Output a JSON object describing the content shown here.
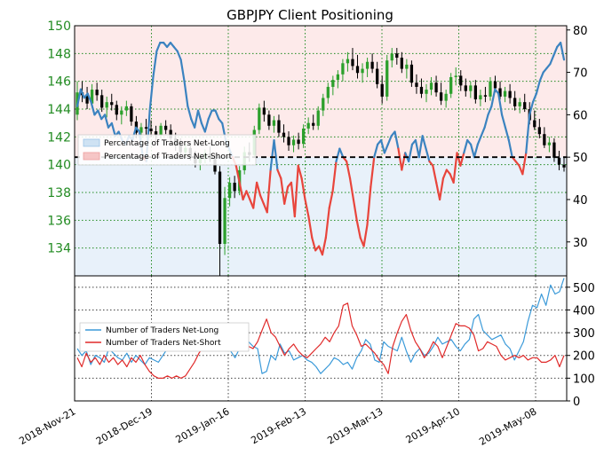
{
  "chart_data": [
    {
      "type": "line",
      "title": "GBPJPY Client Positioning",
      "x_labels": [
        "2018-Nov-21",
        "2018-Dec-19",
        "2019-Jan-16",
        "2019-Feb-13",
        "2019-Mar-13",
        "2019-Apr-10",
        "2019-May-08"
      ],
      "y_left_ticks": [
        134,
        136,
        138,
        140,
        142,
        144,
        146,
        148,
        150
      ],
      "y_left_range": [
        132,
        150
      ],
      "y_right_ticks": [
        30,
        40,
        50,
        60,
        70,
        80
      ],
      "y_right_range": [
        22,
        81
      ],
      "reference_line": 50,
      "grid": true,
      "legend_position": "middle-left",
      "legend": [
        "Percentage of Traders Net-Long",
        "Percentage of Traders Net-Short"
      ],
      "colors": {
        "long": "#3b83c0",
        "short": "#e8453c",
        "price_up": "#2ca02c",
        "price_down": "#000000",
        "left_axis": "#228b22",
        "grid": "#228b22"
      },
      "price_ohlc": [
        [
          143.6,
          146.0,
          143.2,
          145.2
        ],
        [
          145.2,
          146.0,
          144.5,
          145.0
        ],
        [
          145.0,
          145.6,
          144.0,
          144.4
        ],
        [
          144.4,
          145.8,
          144.1,
          145.4
        ],
        [
          145.4,
          145.9,
          144.6,
          145.0
        ],
        [
          145.0,
          145.4,
          143.8,
          144.1
        ],
        [
          144.1,
          144.9,
          143.4,
          144.5
        ],
        [
          144.5,
          145.1,
          143.9,
          144.3
        ],
        [
          144.3,
          144.6,
          143.2,
          143.6
        ],
        [
          143.6,
          144.2,
          142.9,
          143.9
        ],
        [
          143.9,
          144.6,
          143.5,
          144.2
        ],
        [
          144.2,
          144.4,
          142.8,
          143.1
        ],
        [
          143.1,
          143.5,
          141.9,
          142.3
        ],
        [
          142.3,
          143.0,
          141.8,
          142.7
        ],
        [
          142.7,
          143.3,
          142.1,
          142.6
        ],
        [
          142.6,
          143.2,
          142.0,
          142.4
        ],
        [
          142.4,
          142.8,
          141.7,
          142.1
        ],
        [
          142.1,
          143.0,
          141.9,
          142.8
        ],
        [
          142.8,
          143.2,
          142.2,
          142.5
        ],
        [
          142.5,
          142.9,
          141.6,
          141.9
        ],
        [
          141.9,
          142.3,
          141.0,
          141.4
        ],
        [
          141.4,
          141.9,
          140.6,
          140.9
        ],
        [
          140.9,
          141.5,
          140.5,
          141.2
        ],
        [
          141.2,
          141.6,
          140.3,
          140.6
        ],
        [
          140.6,
          141.0,
          139.8,
          140.1
        ],
        [
          140.1,
          140.8,
          139.6,
          140.5
        ],
        [
          140.5,
          141.1,
          140.1,
          140.8
        ],
        [
          140.8,
          141.3,
          140.2,
          140.4
        ],
        [
          140.4,
          140.8,
          139.3,
          139.5
        ],
        [
          139.5,
          139.9,
          132.0,
          134.3
        ],
        [
          134.3,
          138.4,
          133.5,
          137.6
        ],
        [
          137.6,
          139.1,
          137.0,
          138.7
        ],
        [
          138.7,
          139.2,
          137.6,
          138.1
        ],
        [
          138.1,
          139.9,
          137.8,
          139.6
        ],
        [
          139.6,
          141.3,
          139.3,
          140.9
        ],
        [
          140.9,
          141.6,
          140.2,
          140.7
        ],
        [
          140.7,
          142.8,
          140.5,
          142.5
        ],
        [
          142.5,
          144.4,
          142.2,
          144.1
        ],
        [
          144.1,
          144.6,
          143.1,
          143.6
        ],
        [
          143.6,
          143.9,
          142.5,
          142.8
        ],
        [
          142.8,
          143.5,
          142.3,
          143.2
        ],
        [
          143.2,
          143.6,
          142.0,
          142.3
        ],
        [
          142.3,
          142.9,
          141.6,
          142.0
        ],
        [
          142.0,
          142.4,
          141.0,
          141.4
        ],
        [
          141.4,
          142.1,
          140.9,
          141.8
        ],
        [
          141.8,
          142.3,
          141.1,
          141.5
        ],
        [
          141.5,
          142.9,
          141.2,
          142.6
        ],
        [
          142.6,
          143.4,
          142.2,
          143.0
        ],
        [
          143.0,
          143.6,
          142.5,
          142.8
        ],
        [
          142.8,
          144.2,
          142.5,
          143.9
        ],
        [
          143.9,
          145.1,
          143.5,
          144.8
        ],
        [
          144.8,
          145.9,
          144.4,
          145.6
        ],
        [
          145.6,
          146.4,
          145.0,
          146.1
        ],
        [
          146.1,
          146.8,
          145.5,
          146.5
        ],
        [
          146.5,
          147.6,
          146.0,
          147.3
        ],
        [
          147.3,
          148.1,
          146.7,
          147.6
        ],
        [
          147.6,
          148.4,
          146.8,
          147.1
        ],
        [
          147.1,
          147.9,
          146.2,
          146.6
        ],
        [
          146.6,
          147.3,
          145.9,
          146.9
        ],
        [
          146.9,
          147.7,
          146.3,
          147.4
        ],
        [
          147.4,
          148.0,
          146.6,
          146.9
        ],
        [
          146.9,
          147.4,
          145.5,
          145.8
        ],
        [
          145.8,
          146.4,
          144.4,
          144.9
        ],
        [
          144.9,
          147.9,
          144.6,
          147.5
        ],
        [
          147.5,
          148.4,
          147.0,
          148.0
        ],
        [
          148.0,
          148.4,
          147.2,
          147.7
        ],
        [
          147.7,
          148.1,
          146.6,
          146.9
        ],
        [
          146.9,
          147.6,
          146.2,
          147.2
        ],
        [
          147.2,
          147.5,
          145.6,
          145.9
        ],
        [
          145.9,
          146.5,
          145.1,
          145.6
        ],
        [
          145.6,
          146.2,
          144.8,
          145.1
        ],
        [
          145.1,
          145.8,
          144.5,
          145.4
        ],
        [
          145.4,
          146.3,
          145.0,
          145.9
        ],
        [
          145.9,
          146.4,
          144.9,
          145.2
        ],
        [
          145.2,
          145.9,
          144.3,
          144.6
        ],
        [
          144.6,
          145.4,
          144.1,
          145.1
        ],
        [
          145.1,
          146.6,
          144.8,
          146.3
        ],
        [
          146.3,
          147.0,
          145.7,
          146.4
        ],
        [
          146.4,
          146.8,
          145.3,
          145.7
        ],
        [
          145.7,
          146.2,
          144.9,
          145.3
        ],
        [
          145.3,
          146.0,
          144.8,
          145.7
        ],
        [
          145.7,
          146.1,
          144.4,
          144.7
        ],
        [
          144.7,
          145.4,
          144.2,
          145.0
        ],
        [
          145.0,
          145.6,
          144.5,
          144.9
        ],
        [
          144.9,
          146.3,
          144.6,
          146.0
        ],
        [
          146.0,
          146.4,
          145.2,
          145.5
        ],
        [
          145.5,
          146.0,
          144.7,
          144.9
        ],
        [
          144.9,
          145.6,
          144.5,
          145.3
        ],
        [
          145.3,
          145.8,
          144.4,
          144.8
        ],
        [
          144.8,
          145.3,
          143.9,
          144.2
        ],
        [
          144.2,
          144.8,
          143.7,
          144.5
        ],
        [
          144.5,
          145.1,
          143.8,
          144.0
        ],
        [
          144.0,
          144.5,
          142.9,
          143.2
        ],
        [
          143.2,
          143.9,
          142.5,
          142.7
        ],
        [
          142.7,
          143.3,
          141.9,
          142.2
        ],
        [
          142.2,
          142.7,
          141.2,
          141.4
        ],
        [
          141.4,
          142.0,
          140.9,
          141.6
        ],
        [
          141.6,
          141.9,
          140.2,
          140.5
        ],
        [
          140.5,
          141.0,
          139.6,
          140.0
        ],
        [
          140.0,
          140.6,
          139.5,
          139.8
        ]
      ],
      "net_long_pct": [
        62,
        66,
        64,
        65,
        63,
        60,
        61,
        59,
        60,
        57,
        58,
        55,
        56,
        54,
        53,
        55,
        54,
        57,
        56,
        50,
        49,
        61,
        69,
        75,
        77,
        77,
        76,
        77,
        76,
        75,
        73,
        68,
        62,
        59,
        57,
        61,
        58,
        56,
        59,
        61,
        61,
        59,
        58,
        54,
        52,
        50,
        48,
        44,
        40,
        42,
        40,
        38,
        44,
        41,
        39,
        37,
        47,
        54,
        47,
        45,
        39,
        43,
        44,
        36,
        48,
        45,
        40,
        36,
        31,
        28,
        29,
        27,
        31,
        38,
        42,
        49,
        52,
        50,
        49,
        45,
        40,
        35,
        31,
        29,
        34,
        43,
        50,
        53,
        54,
        51,
        53,
        55,
        56,
        52,
        47,
        51,
        49,
        53,
        54,
        50,
        55,
        52,
        49,
        48,
        44,
        40,
        45,
        47,
        46,
        44,
        51,
        48,
        51,
        54,
        53,
        50,
        53,
        55,
        57,
        60,
        62,
        66,
        65,
        60,
        57,
        54,
        50,
        49,
        48,
        46,
        51,
        60,
        63,
        65,
        68,
        70,
        71,
        72,
        74,
        76,
        77,
        73
      ]
    },
    {
      "type": "line",
      "y_ticks": [
        0,
        100,
        200,
        300,
        400,
        500
      ],
      "y_range": [
        0,
        550
      ],
      "grid": true,
      "legend_position": "middle-left",
      "series": [
        {
          "name": "Number of Traders Net-Long",
          "color": "#3b9ad9",
          "values": [
            230,
            200,
            220,
            160,
            200,
            190,
            170,
            230,
            210,
            190,
            180,
            210,
            170,
            200,
            180,
            160,
            190,
            180,
            170,
            200,
            230,
            270,
            270,
            270,
            220,
            270,
            260,
            300,
            260,
            240,
            230,
            250,
            250,
            260,
            220,
            190,
            230,
            250,
            260,
            240,
            230,
            120,
            130,
            200,
            180,
            250,
            210,
            220,
            180,
            190,
            200,
            180,
            170,
            150,
            120,
            140,
            160,
            190,
            180,
            160,
            170,
            140,
            190,
            220,
            270,
            250,
            180,
            170,
            260,
            240,
            230,
            220,
            280,
            220,
            170,
            210,
            230,
            200,
            210,
            240,
            280,
            250,
            260,
            270,
            240,
            220,
            250,
            270,
            360,
            380,
            310,
            290,
            270,
            280,
            290,
            250,
            230,
            180,
            220,
            260,
            350,
            420,
            410,
            470,
            420,
            510,
            470,
            480,
            540
          ]
        },
        {
          "name": "Number of Traders Net-Short",
          "color": "#e02a2a",
          "values": [
            190,
            150,
            210,
            170,
            190,
            160,
            200,
            170,
            190,
            160,
            180,
            150,
            190,
            170,
            200,
            160,
            130,
            110,
            100,
            100,
            110,
            100,
            110,
            100,
            110,
            140,
            170,
            210,
            240,
            260,
            230,
            240,
            300,
            330,
            260,
            290,
            310,
            250,
            240,
            230,
            260,
            310,
            360,
            300,
            280,
            240,
            200,
            230,
            250,
            220,
            200,
            190,
            210,
            230,
            250,
            280,
            260,
            300,
            330,
            420,
            430,
            330,
            290,
            240,
            250,
            230,
            210,
            180,
            160,
            120,
            240,
            300,
            350,
            380,
            310,
            260,
            230,
            190,
            220,
            260,
            240,
            190,
            240,
            290,
            340,
            330,
            330,
            320,
            290,
            220,
            230,
            260,
            250,
            240,
            200,
            180,
            190,
            200,
            190,
            200,
            180,
            190,
            190,
            170,
            170,
            180,
            200,
            150,
            200
          ]
        }
      ]
    }
  ]
}
